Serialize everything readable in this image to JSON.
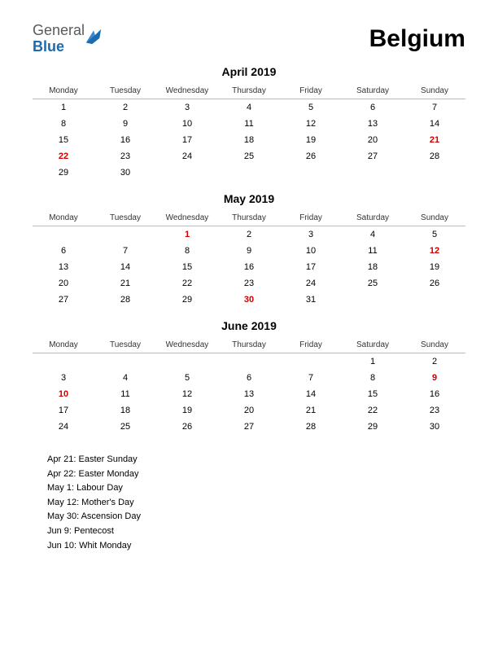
{
  "logo": {
    "word1": "General",
    "word2": "Blue",
    "icon_color": "#1a6bb0"
  },
  "country": "Belgium",
  "colors": {
    "text": "#000000",
    "holiday": "#cc0000",
    "rule": "#bbbbbb",
    "logo_gray": "#5a5a5a",
    "logo_blue": "#1a6bb0",
    "background": "#ffffff"
  },
  "day_headers": [
    "Monday",
    "Tuesday",
    "Wednesday",
    "Thursday",
    "Friday",
    "Saturday",
    "Sunday"
  ],
  "months": [
    {
      "title": "April 2019",
      "weeks": [
        [
          {
            "d": "1"
          },
          {
            "d": "2"
          },
          {
            "d": "3"
          },
          {
            "d": "4"
          },
          {
            "d": "5"
          },
          {
            "d": "6"
          },
          {
            "d": "7"
          }
        ],
        [
          {
            "d": "8"
          },
          {
            "d": "9"
          },
          {
            "d": "10"
          },
          {
            "d": "11"
          },
          {
            "d": "12"
          },
          {
            "d": "13"
          },
          {
            "d": "14"
          }
        ],
        [
          {
            "d": "15"
          },
          {
            "d": "16"
          },
          {
            "d": "17"
          },
          {
            "d": "18"
          },
          {
            "d": "19"
          },
          {
            "d": "20"
          },
          {
            "d": "21",
            "h": true
          }
        ],
        [
          {
            "d": "22",
            "h": true
          },
          {
            "d": "23"
          },
          {
            "d": "24"
          },
          {
            "d": "25"
          },
          {
            "d": "26"
          },
          {
            "d": "27"
          },
          {
            "d": "28"
          }
        ],
        [
          {
            "d": "29"
          },
          {
            "d": "30"
          },
          {
            "d": ""
          },
          {
            "d": ""
          },
          {
            "d": ""
          },
          {
            "d": ""
          },
          {
            "d": ""
          }
        ]
      ]
    },
    {
      "title": "May 2019",
      "weeks": [
        [
          {
            "d": ""
          },
          {
            "d": ""
          },
          {
            "d": "1",
            "h": true
          },
          {
            "d": "2"
          },
          {
            "d": "3"
          },
          {
            "d": "4"
          },
          {
            "d": "5"
          }
        ],
        [
          {
            "d": "6"
          },
          {
            "d": "7"
          },
          {
            "d": "8"
          },
          {
            "d": "9"
          },
          {
            "d": "10"
          },
          {
            "d": "11"
          },
          {
            "d": "12",
            "h": true
          }
        ],
        [
          {
            "d": "13"
          },
          {
            "d": "14"
          },
          {
            "d": "15"
          },
          {
            "d": "16"
          },
          {
            "d": "17"
          },
          {
            "d": "18"
          },
          {
            "d": "19"
          }
        ],
        [
          {
            "d": "20"
          },
          {
            "d": "21"
          },
          {
            "d": "22"
          },
          {
            "d": "23"
          },
          {
            "d": "24"
          },
          {
            "d": "25"
          },
          {
            "d": "26"
          }
        ],
        [
          {
            "d": "27"
          },
          {
            "d": "28"
          },
          {
            "d": "29"
          },
          {
            "d": "30",
            "h": true
          },
          {
            "d": "31"
          },
          {
            "d": ""
          },
          {
            "d": ""
          }
        ]
      ]
    },
    {
      "title": "June 2019",
      "weeks": [
        [
          {
            "d": ""
          },
          {
            "d": ""
          },
          {
            "d": ""
          },
          {
            "d": ""
          },
          {
            "d": ""
          },
          {
            "d": "1"
          },
          {
            "d": "2"
          }
        ],
        [
          {
            "d": "3"
          },
          {
            "d": "4"
          },
          {
            "d": "5"
          },
          {
            "d": "6"
          },
          {
            "d": "7"
          },
          {
            "d": "8"
          },
          {
            "d": "9",
            "h": true
          }
        ],
        [
          {
            "d": "10",
            "h": true
          },
          {
            "d": "11"
          },
          {
            "d": "12"
          },
          {
            "d": "13"
          },
          {
            "d": "14"
          },
          {
            "d": "15"
          },
          {
            "d": "16"
          }
        ],
        [
          {
            "d": "17"
          },
          {
            "d": "18"
          },
          {
            "d": "19"
          },
          {
            "d": "20"
          },
          {
            "d": "21"
          },
          {
            "d": "22"
          },
          {
            "d": "23"
          }
        ],
        [
          {
            "d": "24"
          },
          {
            "d": "25"
          },
          {
            "d": "26"
          },
          {
            "d": "27"
          },
          {
            "d": "28"
          },
          {
            "d": "29"
          },
          {
            "d": "30"
          }
        ]
      ]
    }
  ],
  "holidays": [
    "Apr 21: Easter Sunday",
    "Apr 22: Easter Monday",
    "May 1: Labour Day",
    "May 12: Mother's Day",
    "May 30: Ascension Day",
    "Jun 9: Pentecost",
    "Jun 10: Whit Monday"
  ]
}
